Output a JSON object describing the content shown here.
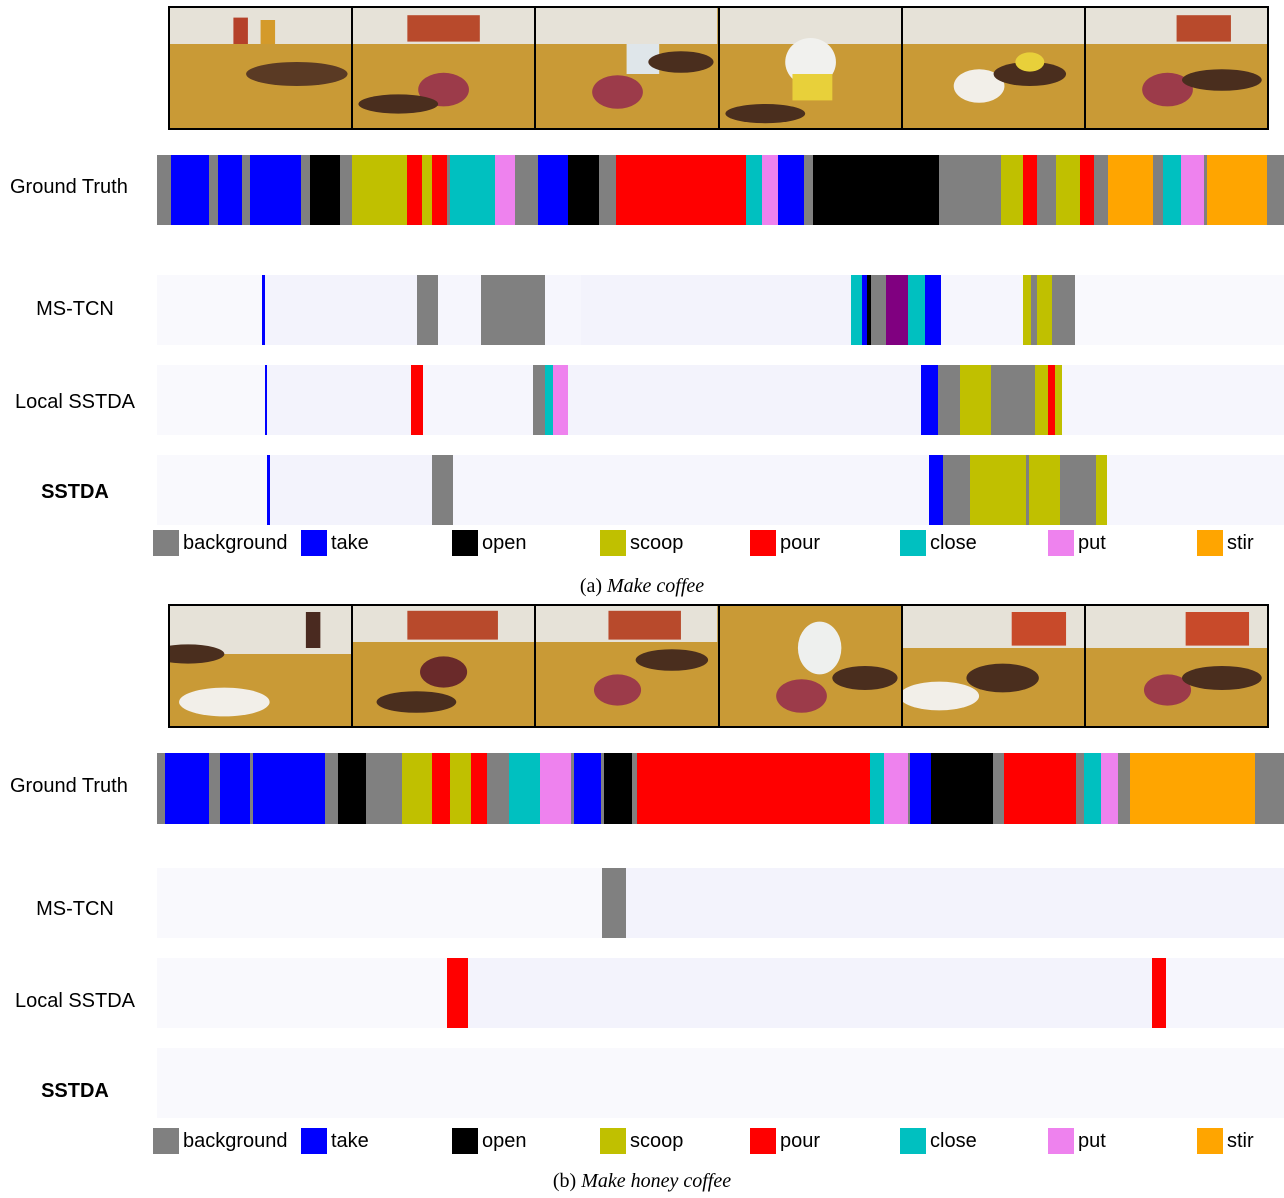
{
  "colors": {
    "background": "#808080",
    "take": "#0000ff",
    "open": "#000000",
    "scoop": "#c0c000",
    "pour": "#ff0000",
    "close": "#00c0c0",
    "put": "#ee82ee",
    "stir": "#ffa500",
    "purple": "#800080"
  },
  "legend": [
    {
      "key": "background",
      "label": "background"
    },
    {
      "key": "take",
      "label": "take"
    },
    {
      "key": "open",
      "label": "open"
    },
    {
      "key": "scoop",
      "label": "scoop"
    },
    {
      "key": "pour",
      "label": "pour"
    },
    {
      "key": "close",
      "label": "close"
    },
    {
      "key": "put",
      "label": "put"
    },
    {
      "key": "stir",
      "label": "stir"
    }
  ],
  "rows": {
    "ground_truth": "Ground Truth",
    "ms_tcn": "MS-TCN",
    "local_sstda": "Local SSTDA",
    "sstda": "SSTDA"
  },
  "panels": [
    {
      "caption_prefix": "(a) ",
      "caption_title": "Make coffee",
      "sequences": {
        "ground_truth": [
          [
            "background",
            1.2
          ],
          [
            "take",
            3.3
          ],
          [
            "background",
            0.8
          ],
          [
            "take",
            2.1
          ],
          [
            "background",
            0.7
          ],
          [
            "take",
            4.5
          ],
          [
            "background",
            0.8
          ],
          [
            "open",
            2.6
          ],
          [
            "background",
            1.0
          ],
          [
            "scoop",
            4.8
          ],
          [
            "pour",
            1.3
          ],
          [
            "scoop",
            0.9
          ],
          [
            "pour",
            1.3
          ],
          [
            "background",
            0.3
          ],
          [
            "close",
            3.9
          ],
          [
            "put",
            1.8
          ],
          [
            "background",
            2.0
          ],
          [
            "take",
            2.6
          ],
          [
            "open",
            2.7
          ],
          [
            "background",
            1.5
          ],
          [
            "pour",
            11.3
          ],
          [
            "close",
            1.4
          ],
          [
            "put",
            1.4
          ],
          [
            "take",
            2.3
          ],
          [
            "background",
            0.8
          ],
          [
            "open",
            11.0
          ],
          [
            "background",
            5.4
          ],
          [
            "scoop",
            1.9
          ],
          [
            "pour",
            1.2
          ],
          [
            "background",
            1.7
          ],
          [
            "scoop",
            2.1
          ],
          [
            "pour",
            1.2
          ],
          [
            "background",
            1.2
          ],
          [
            "stir",
            4.0
          ],
          [
            "background",
            0.8
          ],
          [
            "close",
            1.6
          ],
          [
            "put",
            2.0
          ],
          [
            "background",
            0.3
          ],
          [
            "stir",
            5.2
          ],
          [
            "background",
            1.5
          ]
        ],
        "ms_tcn": [
          [
            "background",
            9.4
          ],
          [
            "take",
            0.2
          ],
          [
            "background",
            13.6
          ],
          [
            "background",
            1.9
          ],
          [
            "background",
            3.8
          ],
          [
            "background",
            1.9
          ],
          [
            "background",
            3.8
          ],
          [
            "background",
            3.2
          ],
          [
            "background",
            24.1
          ],
          [
            "close",
            1.0
          ],
          [
            "take",
            0.4
          ],
          [
            "open",
            0.4
          ],
          [
            "background",
            1.3
          ],
          [
            "purple",
            2.0
          ],
          [
            "close",
            1.5
          ],
          [
            "take",
            1.4
          ],
          [
            "background",
            7.3
          ],
          [
            "scoop",
            0.7
          ],
          [
            "background",
            0.6
          ],
          [
            "scoop",
            1.3
          ],
          [
            "background",
            2.1
          ],
          [
            "background",
            18.6
          ]
        ],
        "local_sstda": [
          [
            "background",
            9.6
          ],
          [
            "take",
            0.2
          ],
          [
            "background",
            12.8
          ],
          [
            "pour",
            1.0
          ],
          [
            "background",
            9.8
          ],
          [
            "background",
            1.1
          ],
          [
            "close",
            0.7
          ],
          [
            "put",
            1.3
          ],
          [
            "background",
            31.4
          ],
          [
            "take",
            1.5
          ],
          [
            "background",
            1.9
          ],
          [
            "scoop",
            2.8
          ],
          [
            "background",
            3.9
          ],
          [
            "scoop",
            1.1
          ],
          [
            "pour",
            0.7
          ],
          [
            "scoop",
            0.6
          ],
          [
            "background",
            19.7
          ]
        ],
        "sstda": [
          [
            "background",
            9.8
          ],
          [
            "take",
            0.2
          ],
          [
            "background",
            14.4
          ],
          [
            "background",
            1.9
          ],
          [
            "background",
            42.2
          ],
          [
            "take",
            1.2
          ],
          [
            "background",
            2.4
          ],
          [
            "scoop",
            5.0
          ],
          [
            "background",
            0.3
          ],
          [
            "scoop",
            2.7
          ],
          [
            "background",
            1.3
          ],
          [
            "background",
            1.9
          ],
          [
            "scoop",
            1.0
          ],
          [
            "background",
            15.7
          ]
        ]
      }
    },
    {
      "caption_prefix": "(b) ",
      "caption_title": "Make honey coffee",
      "sequences": {
        "ground_truth": [
          [
            "background",
            0.7
          ],
          [
            "take",
            3.9
          ],
          [
            "background",
            1.0
          ],
          [
            "take",
            2.6
          ],
          [
            "background",
            0.3
          ],
          [
            "take",
            6.4
          ],
          [
            "background",
            1.1
          ],
          [
            "open",
            2.5
          ],
          [
            "background",
            3.2
          ],
          [
            "scoop",
            2.6
          ],
          [
            "pour",
            1.6
          ],
          [
            "scoop",
            1.9
          ],
          [
            "pour",
            1.4
          ],
          [
            "background",
            1.9
          ],
          [
            "close",
            2.8
          ],
          [
            "put",
            2.7
          ],
          [
            "background",
            0.3
          ],
          [
            "take",
            2.4
          ],
          [
            "background",
            0.2
          ],
          [
            "open",
            2.5
          ],
          [
            "background",
            0.5
          ],
          [
            "pour",
            20.6
          ],
          [
            "close",
            1.2
          ],
          [
            "put",
            2.1
          ],
          [
            "background",
            0.2
          ],
          [
            "take",
            1.9
          ],
          [
            "open",
            5.5
          ],
          [
            "background",
            0.9
          ],
          [
            "pour",
            6.4
          ],
          [
            "background",
            0.7
          ],
          [
            "close",
            1.5
          ],
          [
            "put",
            1.5
          ],
          [
            "background",
            1.1
          ],
          [
            "stir",
            11.0
          ],
          [
            "background",
            2.6
          ]
        ],
        "ms_tcn": [
          [
            "background",
            39.5
          ],
          [
            "background",
            2.1
          ],
          [
            "background",
            58.4
          ]
        ],
        "local_sstda": [
          [
            "background",
            25.7
          ],
          [
            "pour",
            1.9
          ],
          [
            "background",
            60.7
          ],
          [
            "pour",
            1.2
          ],
          [
            "background",
            10.5
          ]
        ],
        "sstda": [
          [
            "background",
            100
          ]
        ]
      }
    }
  ]
}
